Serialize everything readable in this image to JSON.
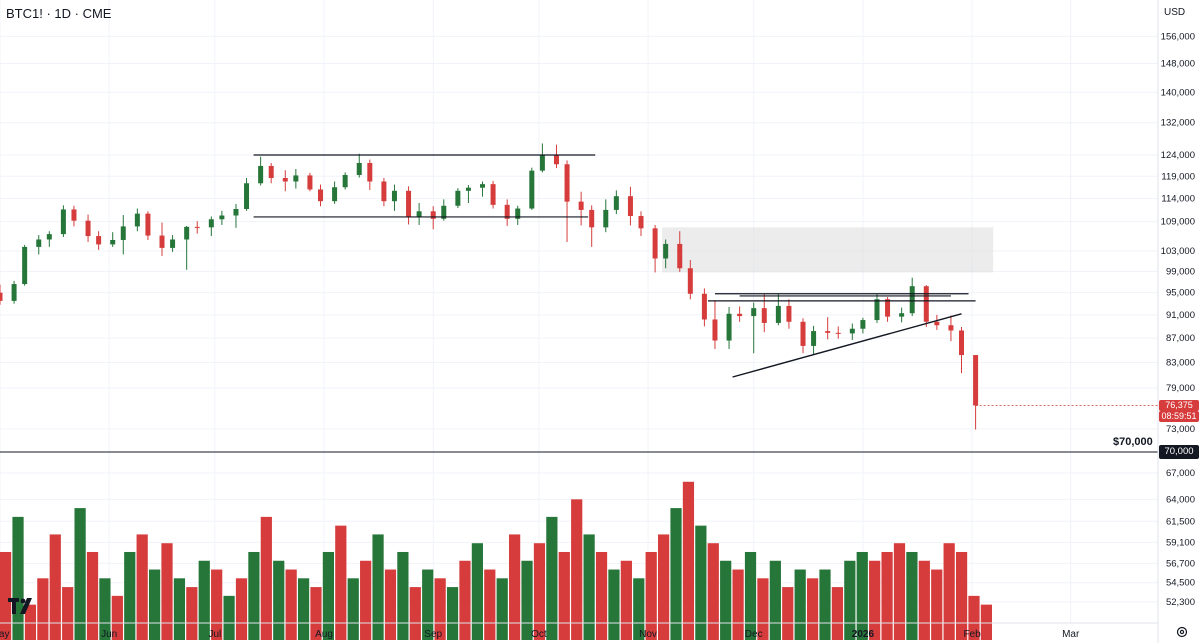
{
  "header": {
    "symbol_line": "BTC1! · 1D · CME",
    "currency": "USD"
  },
  "badges": {
    "last_price": "76,375",
    "countdown": "08:59:51",
    "level_value": "70,000",
    "level_label": "$70,000"
  },
  "colors": {
    "up": "#26763a",
    "down": "#d63c3c",
    "grid": "#f0f3fa",
    "text": "#131722",
    "zone": "#d9d9d9"
  },
  "icons": {
    "logo": "tradingview-logo-icon",
    "settings": "gear-icon"
  },
  "chart_data": {
    "type": "candlestick",
    "title": "BTC1! · 1D · CME",
    "grid": true,
    "y_axis": {
      "scale": "log",
      "ticks": [
        "156,000",
        "148,000",
        "140,000",
        "132,000",
        "124,000",
        "119,000",
        "114,000",
        "109,000",
        "103,000",
        "99,000",
        "95,000",
        "91,000",
        "87,000",
        "83,000",
        "79,000",
        "73,000",
        "67,000",
        "64,000",
        "61,500",
        "59,100",
        "56,700",
        "54,500",
        "52,300"
      ]
    },
    "x_axis": {
      "ticks": [
        "May",
        "Jun",
        "Jul",
        "Aug",
        "Sep",
        "Oct",
        "Nov",
        "Dec",
        "2026",
        "Feb",
        "Mar"
      ],
      "start": "2025-05-01",
      "end": "2026-03-15"
    },
    "price_ohlc": [
      [
        "2025-05-01",
        95000,
        96500,
        92800,
        93500
      ],
      [
        "2025-05-05",
        93500,
        97200,
        93000,
        96600
      ],
      [
        "2025-05-08",
        96600,
        104200,
        96300,
        103800
      ],
      [
        "2025-05-12",
        103800,
        106200,
        102300,
        105300
      ],
      [
        "2025-05-15",
        105300,
        107000,
        103800,
        106400
      ],
      [
        "2025-05-19",
        106400,
        112500,
        105800,
        111600
      ],
      [
        "2025-05-22",
        111600,
        112400,
        108000,
        109200
      ],
      [
        "2025-05-26",
        109200,
        110500,
        104800,
        106000
      ],
      [
        "2025-05-29",
        106000,
        107000,
        103200,
        104300
      ],
      [
        "2025-06-02",
        104300,
        106800,
        103800,
        105200
      ],
      [
        "2025-06-05",
        105200,
        110400,
        102300,
        108000
      ],
      [
        "2025-06-09",
        108000,
        111800,
        107000,
        110700
      ],
      [
        "2025-06-12",
        110700,
        111200,
        105200,
        106100
      ],
      [
        "2025-06-16",
        106100,
        108800,
        102000,
        103600
      ],
      [
        "2025-06-19",
        103600,
        106200,
        102800,
        105300
      ],
      [
        "2025-06-23",
        105300,
        108100,
        99300,
        107900
      ],
      [
        "2025-06-26",
        107900,
        109100,
        106500,
        107800
      ],
      [
        "2025-06-30",
        107800,
        110100,
        106000,
        109500
      ],
      [
        "2025-07-03",
        109500,
        111300,
        108300,
        110300
      ],
      [
        "2025-07-07",
        110300,
        112800,
        107700,
        111700
      ],
      [
        "2025-07-10",
        111700,
        118600,
        111300,
        117400
      ],
      [
        "2025-07-14",
        117400,
        123600,
        116900,
        121400
      ],
      [
        "2025-07-17",
        121400,
        122100,
        117400,
        118600
      ],
      [
        "2025-07-21",
        118600,
        120400,
        115600,
        117800
      ],
      [
        "2025-07-24",
        117800,
        120700,
        116200,
        119200
      ],
      [
        "2025-07-28",
        119200,
        119800,
        115600,
        116000
      ],
      [
        "2025-07-31",
        116000,
        117100,
        112300,
        113400
      ],
      [
        "2025-08-04",
        113400,
        117800,
        112800,
        116500
      ],
      [
        "2025-08-07",
        116500,
        119900,
        116000,
        119300
      ],
      [
        "2025-08-11",
        119300,
        124300,
        118700,
        122100
      ],
      [
        "2025-08-14",
        122100,
        122900,
        115900,
        117800
      ],
      [
        "2025-08-18",
        117800,
        118600,
        112300,
        113400
      ],
      [
        "2025-08-21",
        113400,
        117100,
        111300,
        115700
      ],
      [
        "2025-08-25",
        115700,
        116700,
        108400,
        109900
      ],
      [
        "2025-08-28",
        109900,
        113000,
        108300,
        111200
      ],
      [
        "2025-09-01",
        111200,
        112300,
        107400,
        109600
      ],
      [
        "2025-09-04",
        109600,
        113800,
        109200,
        112400
      ],
      [
        "2025-09-08",
        112400,
        116300,
        111900,
        115700
      ],
      [
        "2025-09-11",
        115700,
        117000,
        113000,
        116400
      ],
      [
        "2025-09-15",
        116400,
        117800,
        114400,
        117200
      ],
      [
        "2025-09-18",
        117200,
        117900,
        111800,
        112600
      ],
      [
        "2025-09-22",
        112600,
        113800,
        108100,
        109600
      ],
      [
        "2025-09-25",
        109600,
        112400,
        108300,
        111800
      ],
      [
        "2025-09-29",
        111800,
        121000,
        111500,
        120300
      ],
      [
        "2025-10-02",
        120300,
        126800,
        119900,
        124100
      ],
      [
        "2025-10-06",
        124100,
        126500,
        120900,
        121800
      ],
      [
        "2025-10-09",
        121800,
        122700,
        104800,
        113300
      ],
      [
        "2025-10-13",
        113300,
        115500,
        108200,
        111500
      ],
      [
        "2025-10-16",
        111500,
        112500,
        103800,
        107800
      ],
      [
        "2025-10-20",
        107800,
        113800,
        106800,
        111500
      ],
      [
        "2025-10-23",
        111500,
        115800,
        110600,
        114500
      ],
      [
        "2025-10-27",
        114500,
        116600,
        108200,
        110200
      ],
      [
        "2025-10-30",
        110200,
        111200,
        106000,
        107600
      ],
      [
        "2025-11-03",
        107600,
        108300,
        98800,
        101500
      ],
      [
        "2025-11-06",
        101500,
        105300,
        99600,
        104400
      ],
      [
        "2025-11-10",
        104400,
        107000,
        98900,
        99600
      ],
      [
        "2025-11-13",
        99600,
        101200,
        93800,
        94800
      ],
      [
        "2025-11-17",
        94800,
        95800,
        89000,
        90200
      ],
      [
        "2025-11-20",
        90200,
        93600,
        85200,
        86600
      ],
      [
        "2025-11-24",
        86600,
        92400,
        85200,
        91200
      ],
      [
        "2025-11-27",
        91200,
        92500,
        89800,
        90800
      ],
      [
        "2025-12-01",
        90800,
        93200,
        84500,
        92200
      ],
      [
        "2025-12-04",
        92200,
        94800,
        88000,
        89600
      ],
      [
        "2025-12-08",
        89600,
        94800,
        89200,
        92600
      ],
      [
        "2025-12-11",
        92600,
        93800,
        88600,
        89800
      ],
      [
        "2025-12-15",
        89800,
        90400,
        84500,
        85700
      ],
      [
        "2025-12-18",
        85700,
        89100,
        84200,
        88200
      ],
      [
        "2025-12-22",
        88200,
        90600,
        86800,
        87900
      ],
      [
        "2025-12-25",
        87900,
        89000,
        86900,
        87800
      ],
      [
        "2025-12-29",
        87800,
        89500,
        86700,
        88600
      ],
      [
        "2026-01-01",
        88600,
        90500,
        87800,
        90100
      ],
      [
        "2026-01-05",
        90100,
        94800,
        89600,
        93800
      ],
      [
        "2026-01-08",
        93800,
        94200,
        89800,
        90700
      ],
      [
        "2026-01-12",
        90700,
        92300,
        89700,
        91300
      ],
      [
        "2026-01-15",
        91300,
        97800,
        90800,
        96200
      ],
      [
        "2026-01-19",
        96200,
        96400,
        88900,
        89800
      ],
      [
        "2026-01-22",
        89800,
        91000,
        88400,
        89200
      ],
      [
        "2026-01-26",
        89200,
        90900,
        86500,
        88300
      ],
      [
        "2026-01-29",
        88300,
        88900,
        81300,
        84200
      ],
      [
        "2026-02-02",
        84200,
        79800,
        72900,
        76375
      ]
    ],
    "volume_bars": [
      [
        58,
        "down"
      ],
      [
        62,
        "up"
      ],
      [
        52,
        "down"
      ],
      [
        55,
        "down"
      ],
      [
        60,
        "down"
      ],
      [
        54,
        "down"
      ],
      [
        63,
        "up"
      ],
      [
        58,
        "down"
      ],
      [
        55,
        "up"
      ],
      [
        53,
        "down"
      ],
      [
        58,
        "up"
      ],
      [
        60,
        "down"
      ],
      [
        56,
        "up"
      ],
      [
        59,
        "down"
      ],
      [
        55,
        "up"
      ],
      [
        54,
        "down"
      ],
      [
        57,
        "up"
      ],
      [
        56,
        "down"
      ],
      [
        53,
        "up"
      ],
      [
        55,
        "down"
      ],
      [
        58,
        "up"
      ],
      [
        62,
        "down"
      ],
      [
        57,
        "up"
      ],
      [
        56,
        "down"
      ],
      [
        55,
        "up"
      ],
      [
        54,
        "down"
      ],
      [
        58,
        "up"
      ],
      [
        61,
        "down"
      ],
      [
        55,
        "up"
      ],
      [
        57,
        "down"
      ],
      [
        60,
        "up"
      ],
      [
        56,
        "down"
      ],
      [
        58,
        "up"
      ],
      [
        54,
        "down"
      ],
      [
        56,
        "up"
      ],
      [
        55,
        "down"
      ],
      [
        54,
        "up"
      ],
      [
        57,
        "down"
      ],
      [
        59,
        "up"
      ],
      [
        56,
        "down"
      ],
      [
        55,
        "up"
      ],
      [
        60,
        "down"
      ],
      [
        57,
        "up"
      ],
      [
        59,
        "down"
      ],
      [
        62,
        "up"
      ],
      [
        58,
        "down"
      ],
      [
        64,
        "down"
      ],
      [
        60,
        "up"
      ],
      [
        58,
        "down"
      ],
      [
        56,
        "up"
      ],
      [
        57,
        "down"
      ],
      [
        55,
        "up"
      ],
      [
        58,
        "down"
      ],
      [
        60,
        "down"
      ],
      [
        63,
        "up"
      ],
      [
        66,
        "down"
      ],
      [
        61,
        "up"
      ],
      [
        59,
        "down"
      ],
      [
        57,
        "up"
      ],
      [
        56,
        "down"
      ],
      [
        58,
        "up"
      ],
      [
        55,
        "down"
      ],
      [
        57,
        "up"
      ],
      [
        54,
        "down"
      ],
      [
        56,
        "up"
      ],
      [
        55,
        "down"
      ],
      [
        56,
        "up"
      ],
      [
        54,
        "down"
      ],
      [
        57,
        "up"
      ],
      [
        58,
        "up"
      ],
      [
        57,
        "down"
      ],
      [
        58,
        "down"
      ],
      [
        59,
        "down"
      ],
      [
        58,
        "up"
      ],
      [
        57,
        "down"
      ],
      [
        56,
        "down"
      ],
      [
        59,
        "down"
      ],
      [
        58,
        "down"
      ],
      [
        53,
        "down"
      ],
      [
        52,
        "down"
      ]
    ],
    "annotations": {
      "level_line": 70000,
      "level_text": "$70,000",
      "last_price": 76375,
      "supply_zone": {
        "x0": "2025-11-05",
        "x1": "2026-02-07",
        "y0": 98800,
        "y1": 107800
      },
      "range_lines": [
        {
          "x0": "2025-07-12",
          "x1": "2025-10-17",
          "y": 124000
        },
        {
          "x0": "2025-07-12",
          "x1": "2025-10-15",
          "y": 110000
        },
        {
          "x0": "2025-11-20",
          "x1": "2026-01-31",
          "y": 94800
        },
        {
          "x0": "2025-11-18",
          "x1": "2026-02-02",
          "y": 93500
        },
        {
          "x0": "2025-11-27",
          "x1": "2026-01-26",
          "y": 94400
        }
      ],
      "trend_line": {
        "x0": "2025-11-25",
        "y0": 80700,
        "x1": "2026-01-29",
        "y1": 91200
      }
    }
  }
}
